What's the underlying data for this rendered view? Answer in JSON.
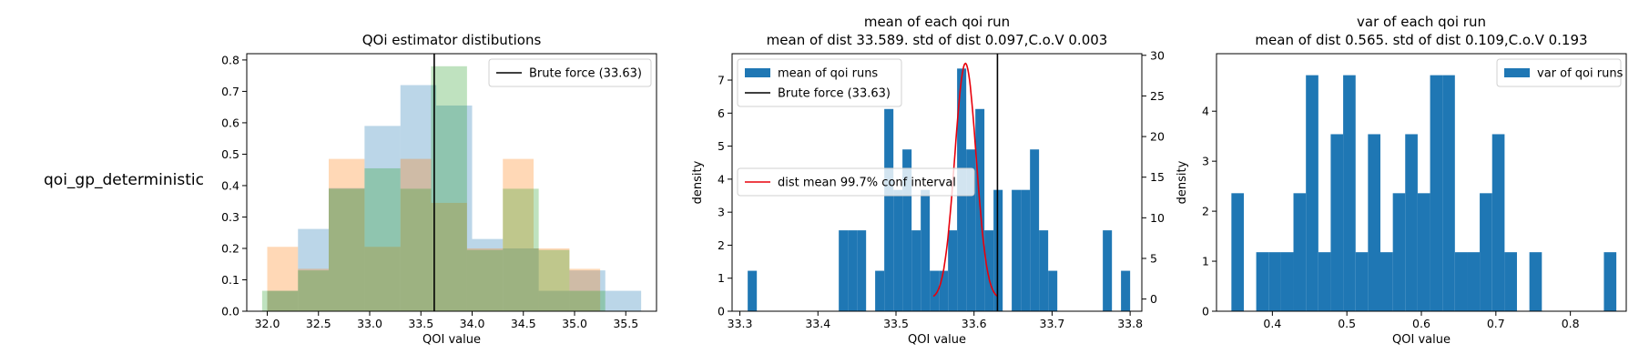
{
  "row_label": "qoi_gp_deterministic",
  "colors": {
    "blue": "#1f77b4",
    "orange": "#ff7f0e",
    "green": "#2ca02c",
    "red": "#e8000b",
    "black": "#000000"
  },
  "chart_data": [
    {
      "type": "bar",
      "title": "QOi estimator distibutions",
      "xlabel": "QOI value",
      "ylabel": "",
      "xlim": [
        31.8,
        35.8
      ],
      "ylim": [
        0,
        0.82
      ],
      "xticks": [
        "32.0",
        "32.5",
        "33.0",
        "33.5",
        "34.0",
        "34.5",
        "35.0",
        "35.5"
      ],
      "yticks": [
        "0.0",
        "0.1",
        "0.2",
        "0.3",
        "0.4",
        "0.5",
        "0.6",
        "0.7",
        "0.8"
      ],
      "grid": false,
      "legend_position": "top-right",
      "series": [
        {
          "color": "#1f77b4",
          "alpha": 0.3,
          "bins": [
            [
              32.0,
              32.3,
              0.065
            ],
            [
              32.3,
              32.6,
              0.262
            ],
            [
              32.6,
              32.95,
              0.392
            ],
            [
              32.95,
              33.3,
              0.59
            ],
            [
              33.3,
              33.65,
              0.72
            ],
            [
              33.65,
              34.0,
              0.655
            ],
            [
              34.0,
              34.3,
              0.23
            ],
            [
              34.3,
              34.65,
              0.2
            ],
            [
              34.65,
              34.95,
              0.065
            ],
            [
              34.95,
              35.3,
              0.13
            ],
            [
              35.3,
              35.65,
              0.065
            ]
          ]
        },
        {
          "color": "#ff7f0e",
          "alpha": 0.3,
          "bins": [
            [
              32.0,
              32.3,
              0.205
            ],
            [
              32.3,
              32.6,
              0.135
            ],
            [
              32.6,
              32.95,
              0.485
            ],
            [
              32.95,
              33.3,
              0.205
            ],
            [
              33.3,
              33.6,
              0.485
            ],
            [
              33.6,
              33.95,
              0.345
            ],
            [
              33.95,
              34.3,
              0.2
            ],
            [
              34.3,
              34.6,
              0.485
            ],
            [
              34.6,
              34.95,
              0.2
            ],
            [
              34.95,
              35.25,
              0.135
            ]
          ]
        },
        {
          "color": "#2ca02c",
          "alpha": 0.3,
          "bins": [
            [
              31.95,
              32.3,
              0.065
            ],
            [
              32.3,
              32.6,
              0.13
            ],
            [
              32.6,
              32.95,
              0.39
            ],
            [
              32.95,
              33.3,
              0.455
            ],
            [
              33.3,
              33.6,
              0.39
            ],
            [
              33.6,
              33.95,
              0.78
            ],
            [
              33.95,
              34.3,
              0.195
            ],
            [
              34.3,
              34.65,
              0.39
            ],
            [
              34.65,
              34.95,
              0.195
            ],
            [
              34.95,
              35.3,
              0.065
            ]
          ]
        }
      ],
      "reference_line": {
        "x": 33.63,
        "label": "Brute force (33.63)"
      }
    },
    {
      "type": "bar",
      "title_line1": "mean of each qoi run",
      "title_line2": "mean of dist 33.589. std of dist 0.097,C.o.V 0.003",
      "xlabel": "QOI value",
      "ylabel": "density",
      "xlim": [
        33.29,
        33.815
      ],
      "ylim": [
        0,
        7.8
      ],
      "y2lim": [
        -1.5,
        30.2
      ],
      "xticks": [
        "33.3",
        "33.4",
        "33.5",
        "33.6",
        "33.7",
        "33.8"
      ],
      "yticks": [
        "0",
        "1",
        "2",
        "3",
        "4",
        "5",
        "6",
        "7"
      ],
      "y2ticks": [
        "0",
        "5",
        "10",
        "15",
        "20",
        "25",
        "30"
      ],
      "grid": false,
      "legend_position": "top-left",
      "hist": {
        "name": "mean of qoi runs",
        "color": "#1f77b4",
        "bins": [
          [
            33.31,
            33.3217,
            1.225
          ],
          [
            33.4267,
            33.4383,
            2.45
          ],
          [
            33.4383,
            33.45,
            2.45
          ],
          [
            33.45,
            33.4617,
            2.45
          ],
          [
            33.4733,
            33.485,
            1.225
          ],
          [
            33.485,
            33.4967,
            6.125
          ],
          [
            33.4967,
            33.5083,
            3.675
          ],
          [
            33.5083,
            33.52,
            4.9
          ],
          [
            33.52,
            33.5317,
            2.45
          ],
          [
            33.5317,
            33.5433,
            3.675
          ],
          [
            33.5433,
            33.555,
            1.225
          ],
          [
            33.555,
            33.5667,
            1.225
          ],
          [
            33.5667,
            33.5783,
            2.45
          ],
          [
            33.5783,
            33.59,
            7.35
          ],
          [
            33.59,
            33.6017,
            4.9
          ],
          [
            33.6017,
            33.6133,
            6.125
          ],
          [
            33.6133,
            33.625,
            2.45
          ],
          [
            33.625,
            33.6367,
            3.675
          ],
          [
            33.6483,
            33.66,
            3.675
          ],
          [
            33.66,
            33.6717,
            3.675
          ],
          [
            33.6717,
            33.6833,
            4.9
          ],
          [
            33.6833,
            33.695,
            2.45
          ],
          [
            33.695,
            33.7067,
            1.225
          ],
          [
            33.765,
            33.7767,
            2.45
          ],
          [
            33.7883,
            33.8,
            1.225
          ]
        ]
      },
      "conf_interval": {
        "name": "dist mean 99.7% conf interval",
        "color": "#e8000b",
        "mean": 33.589,
        "std": 0.0137,
        "x_range": [
          33.548,
          33.63
        ],
        "peak": 29.0
      },
      "reference_line": {
        "x": 33.63,
        "label": "Brute force (33.63)"
      }
    },
    {
      "type": "bar",
      "title_line1": "var of each qoi run",
      "title_line2": "mean of dist 0.565. std of dist 0.109,C.o.V 0.193",
      "xlabel": "QOI value",
      "ylabel": "density",
      "xlim": [
        0.325,
        0.875
      ],
      "ylim": [
        0,
        5.15
      ],
      "xticks": [
        "0.4",
        "0.5",
        "0.6",
        "0.7",
        "0.8"
      ],
      "yticks": [
        "0",
        "1",
        "2",
        "3",
        "4"
      ],
      "grid": false,
      "legend_position": "top-right",
      "hist": {
        "name": "var of qoi runs",
        "color": "#1f77b4",
        "bins": [
          [
            0.345,
            0.3617,
            2.36
          ],
          [
            0.3783,
            0.395,
            1.18
          ],
          [
            0.395,
            0.4117,
            1.18
          ],
          [
            0.4117,
            0.4283,
            1.18
          ],
          [
            0.4283,
            0.445,
            2.36
          ],
          [
            0.445,
            0.4617,
            4.72
          ],
          [
            0.4617,
            0.4783,
            1.18
          ],
          [
            0.4783,
            0.495,
            3.54
          ],
          [
            0.495,
            0.5117,
            4.72
          ],
          [
            0.5117,
            0.5283,
            1.18
          ],
          [
            0.5283,
            0.545,
            3.54
          ],
          [
            0.545,
            0.5617,
            1.18
          ],
          [
            0.5617,
            0.5783,
            2.36
          ],
          [
            0.5783,
            0.595,
            3.54
          ],
          [
            0.595,
            0.6117,
            2.36
          ],
          [
            0.6117,
            0.6283,
            4.72
          ],
          [
            0.6283,
            0.645,
            4.72
          ],
          [
            0.645,
            0.6617,
            1.18
          ],
          [
            0.6617,
            0.6783,
            1.18
          ],
          [
            0.6783,
            0.695,
            2.36
          ],
          [
            0.695,
            0.7117,
            3.54
          ],
          [
            0.7117,
            0.7283,
            1.18
          ],
          [
            0.745,
            0.7617,
            1.18
          ],
          [
            0.845,
            0.8617,
            1.18
          ]
        ]
      }
    }
  ]
}
